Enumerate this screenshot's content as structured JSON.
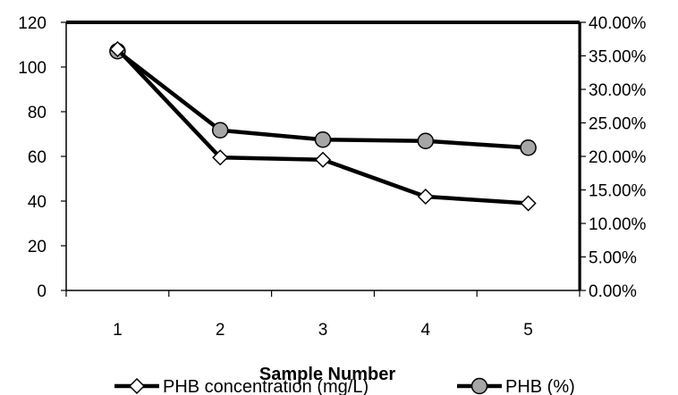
{
  "chart_data": {
    "type": "line",
    "title": "",
    "xlabel": "Sample Number",
    "ylabel": "",
    "x": [
      1,
      2,
      3,
      4,
      5
    ],
    "x_tick_labels": [
      "1",
      "2",
      "3",
      "4",
      "5"
    ],
    "ylim": [
      0,
      120
    ],
    "y_ticks": [
      0,
      20,
      40,
      60,
      80,
      100,
      120
    ],
    "y2lim": [
      0,
      0.4
    ],
    "y2_ticks": [
      0,
      0.05,
      0.1,
      0.15,
      0.2,
      0.25,
      0.3,
      0.35,
      0.4
    ],
    "y2_tick_labels": [
      "0.00%",
      "5.00%",
      "10.00%",
      "15.00%",
      "20.00%",
      "25.00%",
      "30.00%",
      "35.00%",
      "40.00%"
    ],
    "grid": false,
    "legend_position": "bottom",
    "series": [
      {
        "name": "PHB concentration (mg/L)",
        "axis": "left",
        "marker": "diamond",
        "marker_fill": "#ffffff",
        "color": "#000000",
        "values": [
          108,
          59.5,
          58.5,
          42,
          39
        ]
      },
      {
        "name": "PHB (%)",
        "axis": "right",
        "marker": "circle",
        "marker_fill": "#a6a6a6",
        "color": "#000000",
        "values": [
          0.357,
          0.239,
          0.225,
          0.223,
          0.213
        ]
      }
    ]
  }
}
